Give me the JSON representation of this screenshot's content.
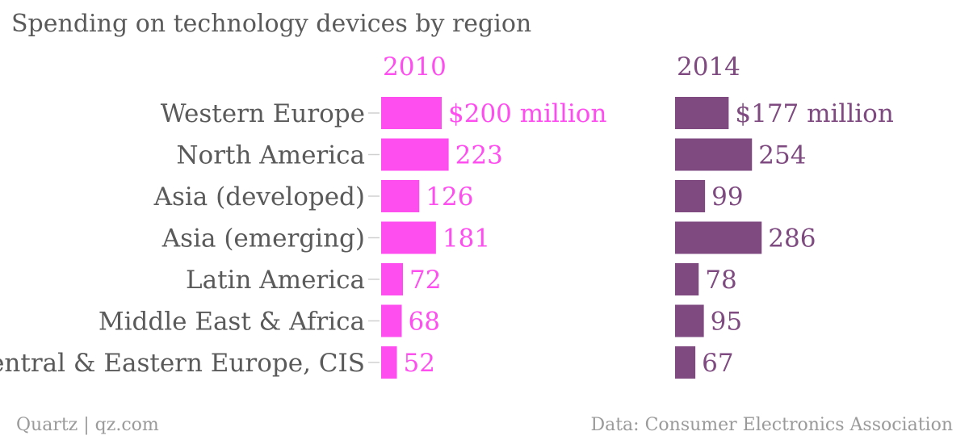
{
  "title": "Spending on technology devices by region",
  "footer": {
    "source_left": "Quartz | qz.com",
    "source_right": "Data: Consumer Electronics Association"
  },
  "colors": {
    "series_2010": "#ff4ef0",
    "series_2014": "#7e4a80",
    "category_text": "#5a5a5a",
    "tick": "#d0d0d0"
  },
  "chart_data": {
    "type": "bar",
    "orientation": "horizontal",
    "layout": "small-multiples",
    "title": "Spending on technology devices by region",
    "categories": [
      "Western Europe",
      "North America",
      "Asia (developed)",
      "Asia (emerging)",
      "Latin America",
      "Middle East & Africa",
      "Central & Eastern Europe, CIS"
    ],
    "series": [
      {
        "name": "2010",
        "values": [
          200,
          223,
          126,
          181,
          72,
          68,
          52
        ],
        "labels": [
          "$200 million",
          "223",
          "126",
          "181",
          "72",
          "68",
          "52"
        ]
      },
      {
        "name": "2014",
        "values": [
          177,
          254,
          99,
          286,
          78,
          95,
          67
        ],
        "labels": [
          "$177 million",
          "254",
          "99",
          "286",
          "78",
          "95",
          "67"
        ]
      }
    ],
    "unit": "$ million",
    "xlim": [
      0,
      290
    ],
    "grid": false,
    "legend": "none"
  }
}
